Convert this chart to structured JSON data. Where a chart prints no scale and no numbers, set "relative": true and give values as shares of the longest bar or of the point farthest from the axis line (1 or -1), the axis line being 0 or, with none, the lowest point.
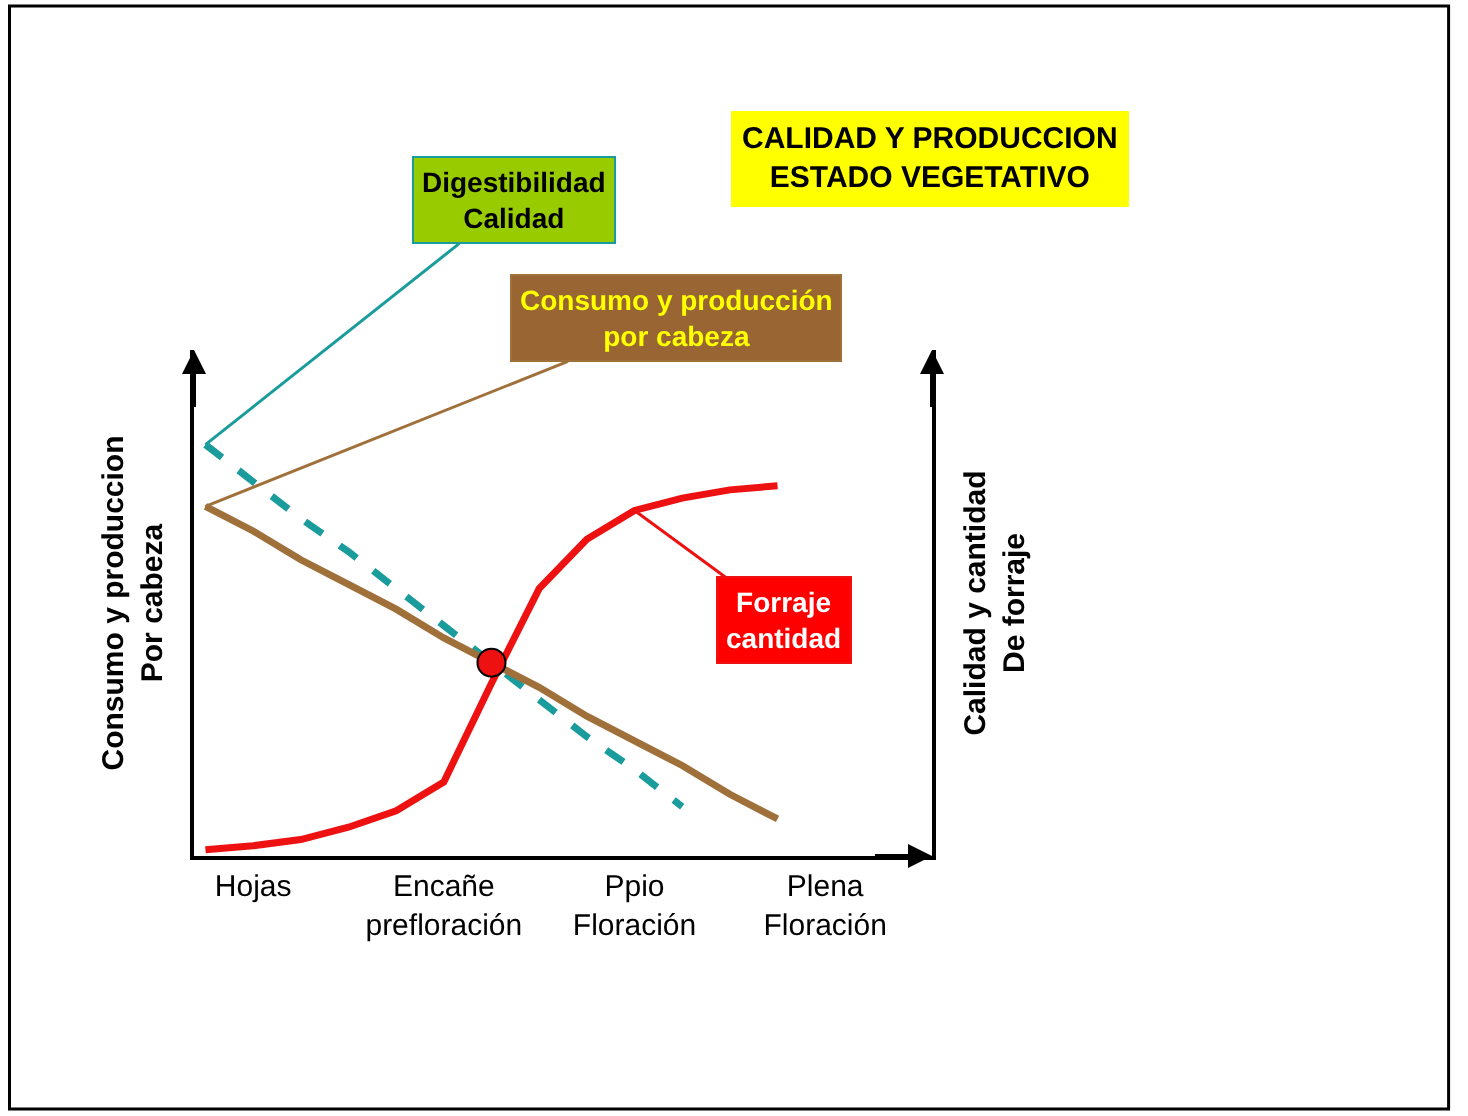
{
  "chart_data": {
    "type": "line",
    "title": "CALIDAD Y PRODUCCION\nESTADO VEGETATIVO",
    "ylabel": "Consumo y produccion\nPor cabeza",
    "y2label": "Calidad y cantidad\nDe forraje",
    "relative": true,
    "categories": [
      null,
      "Hojas",
      null,
      null,
      null,
      "Encañe\nprefloración",
      null,
      null,
      null,
      "Ppio\nFloración",
      null,
      null,
      null,
      "Plena\nFloración"
    ],
    "series": [
      {
        "name": "Digestibilidad\nCalidad",
        "color": "#1a9c9c",
        "line_style": "dashed",
        "values": [
          1.0,
          0.91,
          0.82,
          0.74,
          0.65,
          0.56,
          0.47,
          0.38,
          0.29,
          0.21,
          0.12,
          null,
          null,
          null
        ]
      },
      {
        "name": "Consumo y producción\npor cabeza",
        "color": "#a0703a",
        "line_style": "solid",
        "values": [
          0.85,
          0.79,
          0.72,
          0.66,
          0.6,
          0.53,
          0.47,
          0.41,
          0.34,
          0.28,
          0.22,
          0.15,
          0.09,
          null
        ]
      },
      {
        "name": "Forraje\ncantidad",
        "color": "#ee1111",
        "line_style": "solid",
        "values": [
          0.015,
          0.025,
          0.04,
          0.07,
          0.11,
          0.18,
          0.42,
          0.65,
          0.77,
          0.84,
          0.87,
          0.89,
          0.9,
          null
        ]
      },
      {
        "type": "scatter",
        "color": "#ee1111",
        "marker": "circle",
        "values": [
          null,
          null,
          null,
          null,
          null,
          null,
          0.47,
          null,
          null,
          null,
          null,
          null,
          null,
          null
        ]
      }
    ],
    "legend": false
  }
}
